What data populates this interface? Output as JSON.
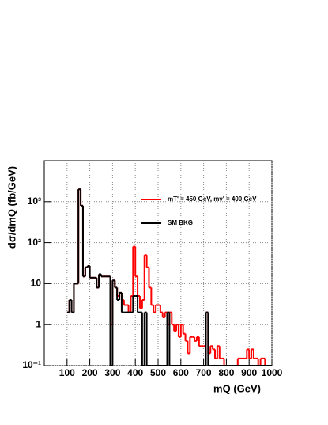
{
  "chart_data": {
    "type": "histogram",
    "xlabel": "mQ (GeV)",
    "ylabel": "dσ/dmQ (fb/GeV)",
    "xlim": [
      0,
      1000
    ],
    "ylim": [
      0.1,
      10000
    ],
    "log_y": true,
    "grid": true,
    "xticks": [
      100,
      200,
      300,
      400,
      500,
      600,
      700,
      800,
      900,
      1000
    ],
    "yticks": [
      {
        "value": 0.1,
        "label": "10⁻¹"
      },
      1,
      10,
      {
        "value": 100,
        "label": "10²"
      },
      {
        "value": 1000,
        "label": "10³"
      }
    ],
    "bins": [
      100,
      110,
      120,
      130,
      140,
      150,
      160,
      170,
      180,
      190,
      200,
      210,
      220,
      230,
      240,
      250,
      260,
      270,
      280,
      290,
      300,
      310,
      320,
      330,
      340,
      350,
      360,
      370,
      380,
      390,
      400,
      410,
      420,
      430,
      440,
      450,
      460,
      470,
      480,
      490,
      500,
      510,
      520,
      530,
      540,
      550,
      560,
      570,
      580,
      590,
      600,
      610,
      620,
      630,
      640,
      650,
      660,
      670,
      680,
      690,
      700,
      710,
      720,
      730,
      740,
      750,
      760,
      770,
      780,
      790,
      800,
      810,
      820,
      830,
      840,
      850,
      860,
      870,
      880,
      890,
      900,
      910,
      920,
      930,
      940,
      950,
      960,
      970,
      980,
      990,
      1000
    ],
    "series": [
      {
        "name": "mT' = 450 GeV, mν' = 400 GeV",
        "color": "#ff0000",
        "values": [
          2,
          4,
          2,
          10,
          10,
          2000,
          800,
          15,
          25,
          27,
          14,
          14,
          14,
          8,
          17,
          15,
          15,
          15,
          15,
          1,
          12,
          8,
          5,
          6,
          4,
          3,
          3,
          2,
          5,
          80,
          15,
          5,
          2.5,
          4,
          50,
          25,
          8,
          3,
          2,
          3,
          3,
          2,
          1.5,
          2,
          1,
          2,
          1,
          0.7,
          1,
          0.5,
          1,
          0.6,
          0.4,
          0.2,
          0.5,
          0.5,
          0.4,
          0.5,
          0.3,
          0.3,
          0.3,
          2,
          0.2,
          0.3,
          0.25,
          0.15,
          0.3,
          0.15,
          0.15,
          0.1,
          0.1,
          0.1,
          0.1,
          0.1,
          0.1,
          0.15,
          0.15,
          0.15,
          0.15,
          0.25,
          0.15,
          0.25,
          0.15,
          0.15,
          0.1,
          0.15,
          0.15,
          0.1,
          0,
          0
        ]
      },
      {
        "name": "SM BKG",
        "color": "#000000",
        "values": [
          2,
          4,
          2,
          10,
          10,
          2000,
          800,
          15,
          25,
          27,
          14,
          14,
          14,
          8,
          17,
          15,
          15,
          15,
          15,
          0,
          12,
          8,
          4,
          6,
          2,
          2,
          2,
          2,
          2,
          5,
          5,
          2,
          2,
          0,
          2,
          0,
          0,
          0,
          0,
          0,
          0,
          0,
          0,
          0,
          2,
          0,
          0,
          0,
          0,
          0,
          0,
          0,
          0,
          0,
          0,
          0,
          0,
          0,
          0,
          0,
          0,
          2,
          0,
          0,
          0,
          0,
          0,
          0,
          0,
          0,
          0,
          0,
          0,
          0,
          0,
          0,
          0,
          0,
          0,
          0,
          0,
          0,
          0,
          0,
          0,
          0,
          0,
          0,
          0,
          0
        ]
      }
    ],
    "legend": "upper-right"
  }
}
